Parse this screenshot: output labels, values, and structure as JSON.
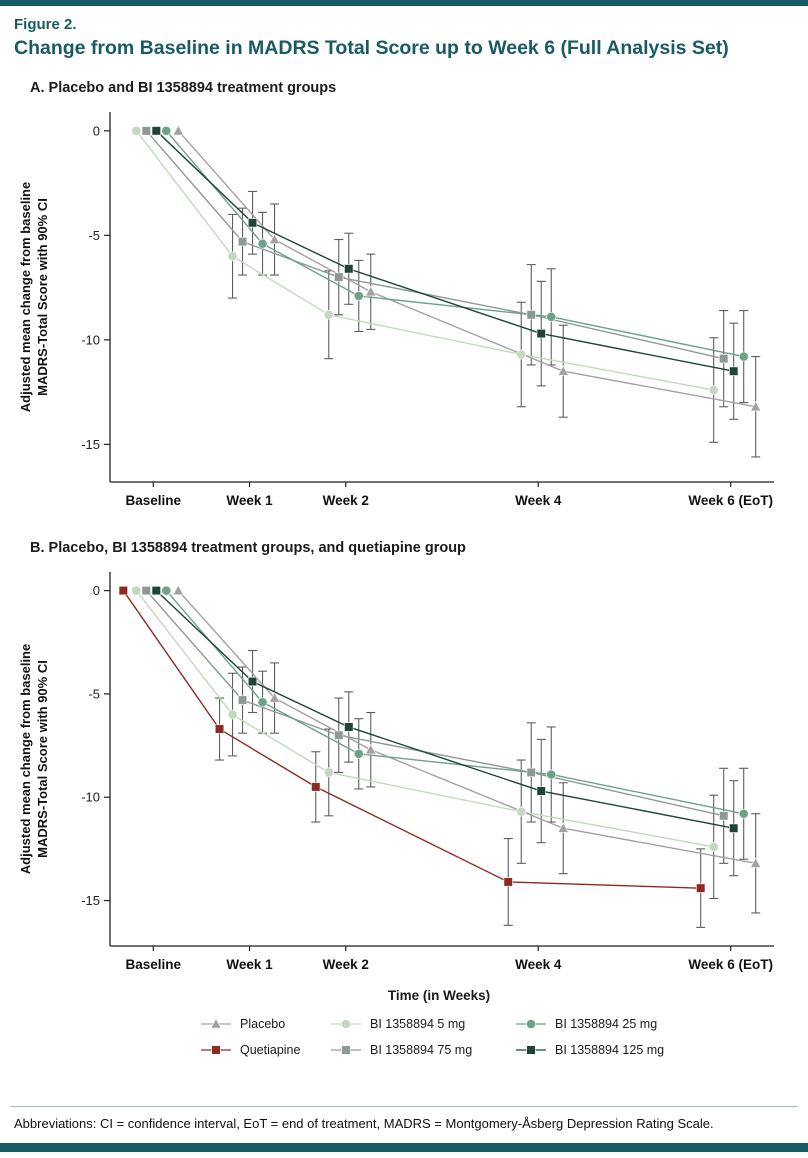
{
  "page": {
    "figure_label": "Figure 2.",
    "title": "Change from Baseline in MADRS Total Score up to Week 6 (Full Analysis Set)",
    "footnote": "Abbreviations: CI = confidence interval, EoT = end of treatment, MADRS = Montgomery-Åsberg Depression Rating Scale.",
    "colors": {
      "accent": "#175b65",
      "error_bar": "#5e5e5e",
      "axis": "#222222"
    }
  },
  "chart_data": [
    {
      "panel": "A",
      "heading": "A. Placebo and BI 1358894 treatment groups",
      "type": "line",
      "categories": [
        "Baseline",
        "Week 1",
        "Week 2",
        "Week 4",
        "Week 6 (EoT)"
      ],
      "x_weeks": [
        0,
        1,
        2,
        4,
        6
      ],
      "ylabel_lines": [
        "Adjusted mean change from baseline",
        "MADRS-Total Score with 90% CI"
      ],
      "yticks": [
        0,
        -5,
        -10,
        -15
      ],
      "ylim": [
        -16.8,
        0.9
      ],
      "error_bars": "90% CI",
      "series": [
        {
          "key": "bi5",
          "name": "BI 1358894 5 mg",
          "marker": "circle",
          "color": "#c3d9bf",
          "offset": -17,
          "values": [
            0,
            -6.0,
            -8.8,
            -10.7,
            -12.4
          ],
          "ci": [
            0,
            2.0,
            2.1,
            2.5,
            2.5
          ]
        },
        {
          "key": "bi75",
          "name": "BI 1358894 75 mg",
          "marker": "square",
          "color": "#8d9a94",
          "offset": -7,
          "values": [
            0,
            -5.3,
            -7.0,
            -8.8,
            -10.9
          ],
          "ci": [
            0,
            1.6,
            1.8,
            2.4,
            2.3
          ]
        },
        {
          "key": "placebo",
          "name": "Placebo",
          "marker": "triangle",
          "color": "#a2a2a2",
          "offset": 25,
          "values": [
            0,
            -5.2,
            -7.7,
            -11.5,
            -13.2
          ],
          "ci": [
            0,
            1.7,
            1.8,
            2.2,
            2.4
          ]
        },
        {
          "key": "bi25",
          "name": "BI 1358894 25 mg",
          "marker": "circle",
          "color": "#6da287",
          "offset": 13,
          "values": [
            0,
            -5.4,
            -7.9,
            -8.9,
            -10.8
          ],
          "ci": [
            0,
            1.5,
            1.7,
            2.3,
            2.2
          ]
        },
        {
          "key": "bi125",
          "name": "BI 1358894 125 mg",
          "marker": "square",
          "color": "#1f4537",
          "offset": 3,
          "values": [
            0,
            -4.4,
            -6.6,
            -9.7,
            -11.5
          ],
          "ci": [
            0,
            1.5,
            1.7,
            2.5,
            2.3
          ]
        }
      ]
    },
    {
      "panel": "B",
      "heading": "B. Placebo, BI 1358894 treatment groups, and quetiapine group",
      "type": "line",
      "xlabel": "Time (in Weeks)",
      "categories": [
        "Baseline",
        "Week 1",
        "Week 2",
        "Week 4",
        "Week 6 (EoT)"
      ],
      "x_weeks": [
        0,
        1,
        2,
        4,
        6
      ],
      "ylabel_lines": [
        "Adjusted mean change from baseline",
        "MADRS-Total Score with 90% CI"
      ],
      "yticks": [
        0,
        -5,
        -10,
        -15
      ],
      "ylim": [
        -17.2,
        0.9
      ],
      "error_bars": "90% CI",
      "series": [
        {
          "key": "quetiapine",
          "name": "Quetiapine",
          "marker": "square",
          "color": "#8e2a22",
          "offset": -30,
          "values": [
            0,
            -6.7,
            -9.5,
            -14.1,
            -14.4
          ],
          "ci": [
            0,
            1.5,
            1.7,
            2.1,
            1.9
          ]
        },
        {
          "key": "bi5",
          "name": "BI 1358894 5 mg",
          "marker": "circle",
          "color": "#c3d9bf",
          "offset": -17,
          "values": [
            0,
            -6.0,
            -8.8,
            -10.7,
            -12.4
          ],
          "ci": [
            0,
            2.0,
            2.1,
            2.5,
            2.5
          ]
        },
        {
          "key": "bi75",
          "name": "BI 1358894 75 mg",
          "marker": "square",
          "color": "#8d9a94",
          "offset": -7,
          "values": [
            0,
            -5.3,
            -7.0,
            -8.8,
            -10.9
          ],
          "ci": [
            0,
            1.6,
            1.8,
            2.4,
            2.3
          ]
        },
        {
          "key": "placebo",
          "name": "Placebo",
          "marker": "triangle",
          "color": "#a2a2a2",
          "offset": 25,
          "values": [
            0,
            -5.2,
            -7.7,
            -11.5,
            -13.2
          ],
          "ci": [
            0,
            1.7,
            1.8,
            2.2,
            2.4
          ]
        },
        {
          "key": "bi25",
          "name": "BI 1358894 25 mg",
          "marker": "circle",
          "color": "#6da287",
          "offset": 13,
          "values": [
            0,
            -5.4,
            -7.9,
            -8.9,
            -10.8
          ],
          "ci": [
            0,
            1.5,
            1.7,
            2.3,
            2.2
          ]
        },
        {
          "key": "bi125",
          "name": "BI 1358894 125 mg",
          "marker": "square",
          "color": "#1f4537",
          "offset": 3,
          "values": [
            0,
            -4.4,
            -6.6,
            -9.7,
            -11.5
          ],
          "ci": [
            0,
            1.5,
            1.7,
            2.5,
            2.3
          ]
        }
      ]
    }
  ],
  "legend": {
    "entries": [
      {
        "key": "placebo",
        "label": "Placebo",
        "marker": "triangle",
        "color": "#a2a2a2"
      },
      {
        "key": "bi5",
        "label": "BI 1358894 5 mg",
        "marker": "circle",
        "color": "#c3d9bf"
      },
      {
        "key": "bi25",
        "label": "BI 1358894 25 mg",
        "marker": "circle",
        "color": "#6da287"
      },
      {
        "key": "quetiapine",
        "label": "Quetiapine",
        "marker": "square",
        "color": "#8e2a22"
      },
      {
        "key": "bi75",
        "label": "BI 1358894 75 mg",
        "marker": "square",
        "color": "#8d9a94"
      },
      {
        "key": "bi125",
        "label": "BI 1358894 125 mg",
        "marker": "square",
        "color": "#1f4537"
      }
    ]
  }
}
